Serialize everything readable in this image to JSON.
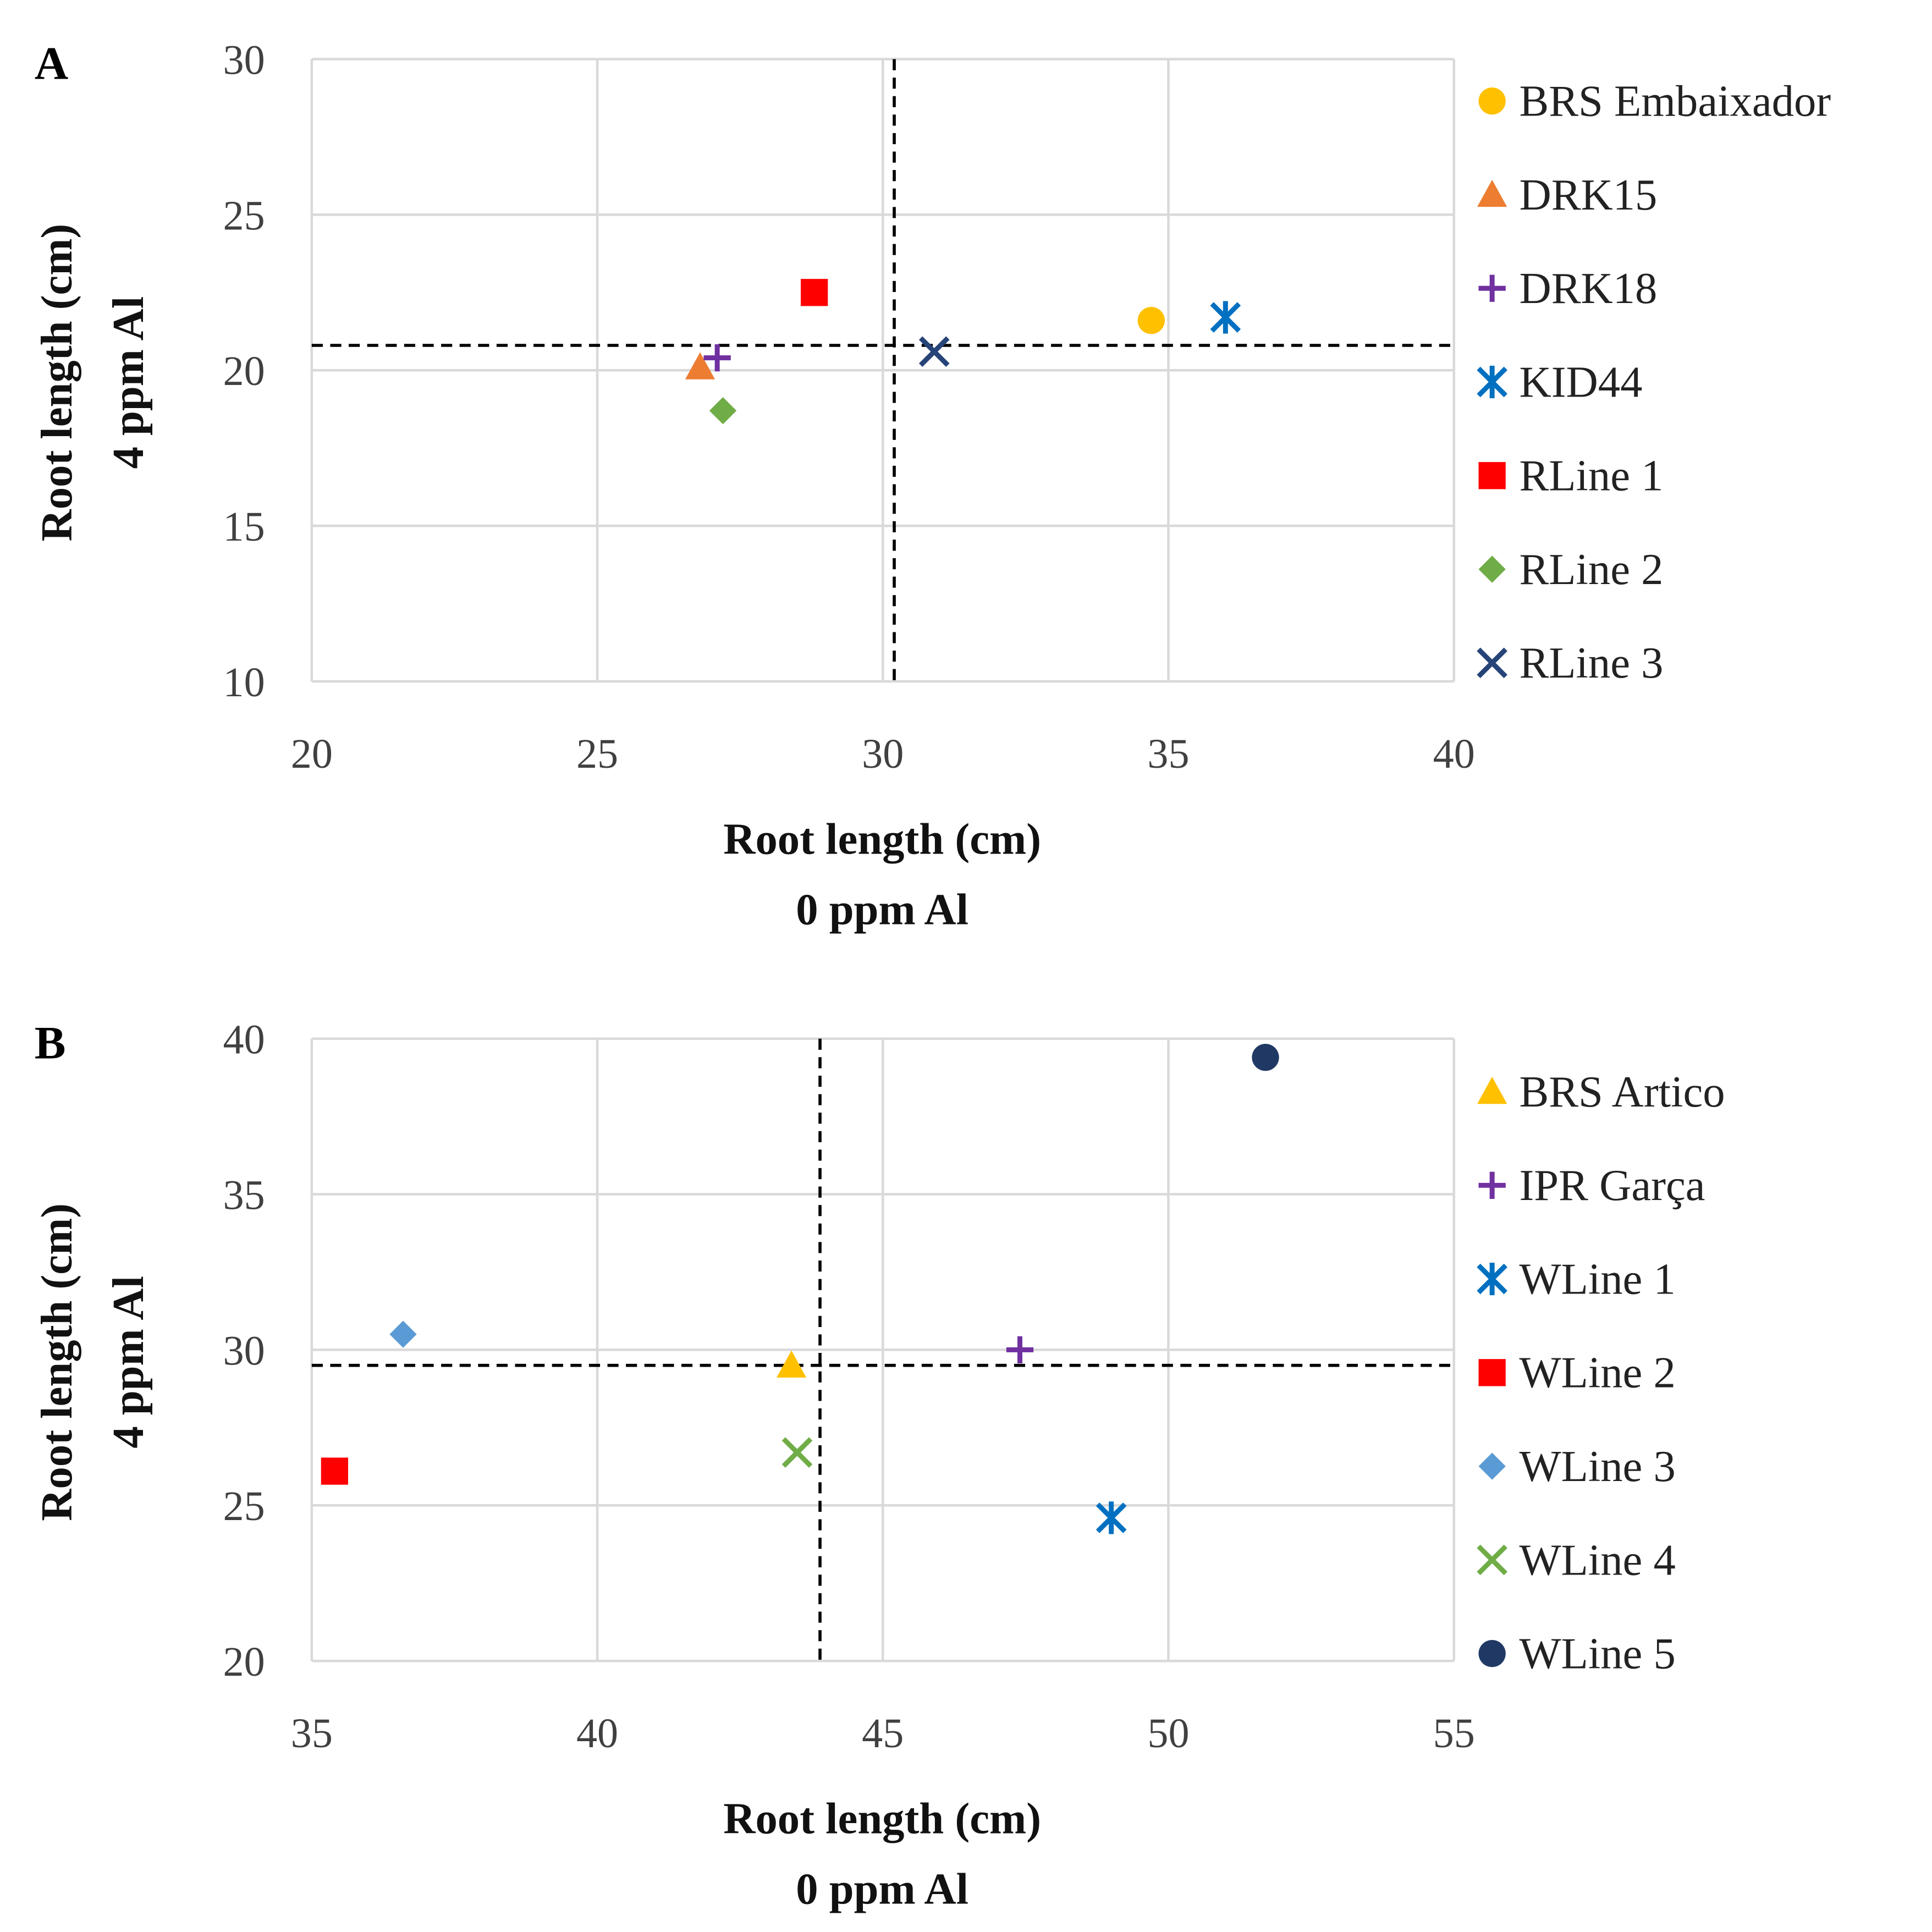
{
  "chart_data": [
    {
      "type": "scatter",
      "panel_label": "A",
      "xlabel": [
        "Root length  (cm)",
        "0 ppm Al"
      ],
      "ylabel": [
        "Root length (cm)",
        "4 ppm Al"
      ],
      "xlim": [
        20,
        40
      ],
      "xticks": [
        20,
        25,
        30,
        35,
        40
      ],
      "ylim": [
        10,
        30
      ],
      "yticks": [
        10,
        15,
        20,
        25,
        30
      ],
      "grid": true,
      "legend_position": "right",
      "reference_lines": {
        "x": 30.2,
        "y": 20.8
      },
      "series": [
        {
          "name": "BRS Embaixador",
          "marker": "circle",
          "color": "#FFC000",
          "x": 34.7,
          "y": 21.6
        },
        {
          "name": "DRK15",
          "marker": "triangle",
          "color": "#ED7D31",
          "x": 26.8,
          "y": 20.1
        },
        {
          "name": "DRK18",
          "marker": "plus",
          "color": "#7030A0",
          "x": 27.1,
          "y": 20.4
        },
        {
          "name": "KID44",
          "marker": "asterisk",
          "color": "#0070C0",
          "x": 36.0,
          "y": 21.7
        },
        {
          "name": "RLine 1",
          "marker": "square",
          "color": "#FF0000",
          "x": 28.8,
          "y": 22.5
        },
        {
          "name": "RLine 2",
          "marker": "diamond",
          "color": "#70AD47",
          "x": 27.2,
          "y": 18.7
        },
        {
          "name": "RLine 3",
          "marker": "x",
          "color": "#264478",
          "x": 30.9,
          "y": 20.6
        }
      ]
    },
    {
      "type": "scatter",
      "panel_label": "B",
      "xlabel": [
        "Root length  (cm)",
        "0 ppm Al"
      ],
      "ylabel": [
        "Root length (cm)",
        "4 ppm Al"
      ],
      "xlim": [
        35,
        55
      ],
      "xticks": [
        35,
        40,
        45,
        50,
        55
      ],
      "ylim": [
        20,
        40
      ],
      "yticks": [
        20,
        25,
        30,
        35,
        40
      ],
      "grid": true,
      "legend_position": "right",
      "reference_lines": {
        "x": 43.9,
        "y": 29.5
      },
      "series": [
        {
          "name": "BRS Artico",
          "marker": "triangle",
          "color": "#FFC000",
          "x": 43.4,
          "y": 29.5
        },
        {
          "name": "IPR Garça",
          "marker": "plus",
          "color": "#7030A0",
          "x": 47.4,
          "y": 30.0
        },
        {
          "name": "WLine 1",
          "marker": "asterisk",
          "color": "#0070C0",
          "x": 49.0,
          "y": 24.6
        },
        {
          "name": "WLine 2",
          "marker": "square",
          "color": "#FF0000",
          "x": 35.4,
          "y": 26.1
        },
        {
          "name": "WLine 3",
          "marker": "diamond",
          "color": "#5B9BD5",
          "x": 36.6,
          "y": 30.5
        },
        {
          "name": "WLine 4",
          "marker": "x",
          "color": "#70AD47",
          "x": 43.5,
          "y": 26.7
        },
        {
          "name": "WLine 5",
          "marker": "circle",
          "color": "#203864",
          "x": 51.7,
          "y": 39.4
        }
      ]
    }
  ]
}
